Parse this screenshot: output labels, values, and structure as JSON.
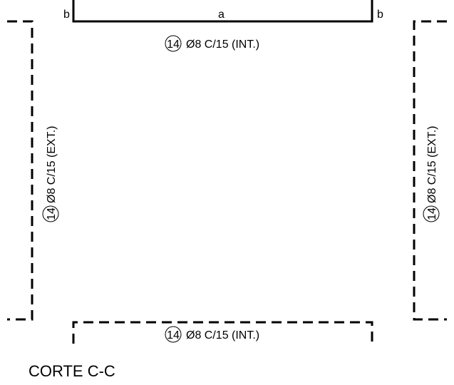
{
  "dimensions": {
    "left_b": "b",
    "center_a": "a",
    "right_b": "b"
  },
  "bars": {
    "top": {
      "mark": "14",
      "spec": "Ø8 C/15 (INT.)"
    },
    "bottom": {
      "mark": "14",
      "spec": "Ø8 C/15 (INT.)"
    },
    "left": {
      "mark": "14",
      "spec": "Ø8 C/15 (EXT.)"
    },
    "right": {
      "mark": "14",
      "spec": "Ø8 C/15 (EXT.)"
    }
  },
  "section_title": "CORTE C-C",
  "colors": {
    "line": "#000000",
    "background": "#ffffff"
  }
}
